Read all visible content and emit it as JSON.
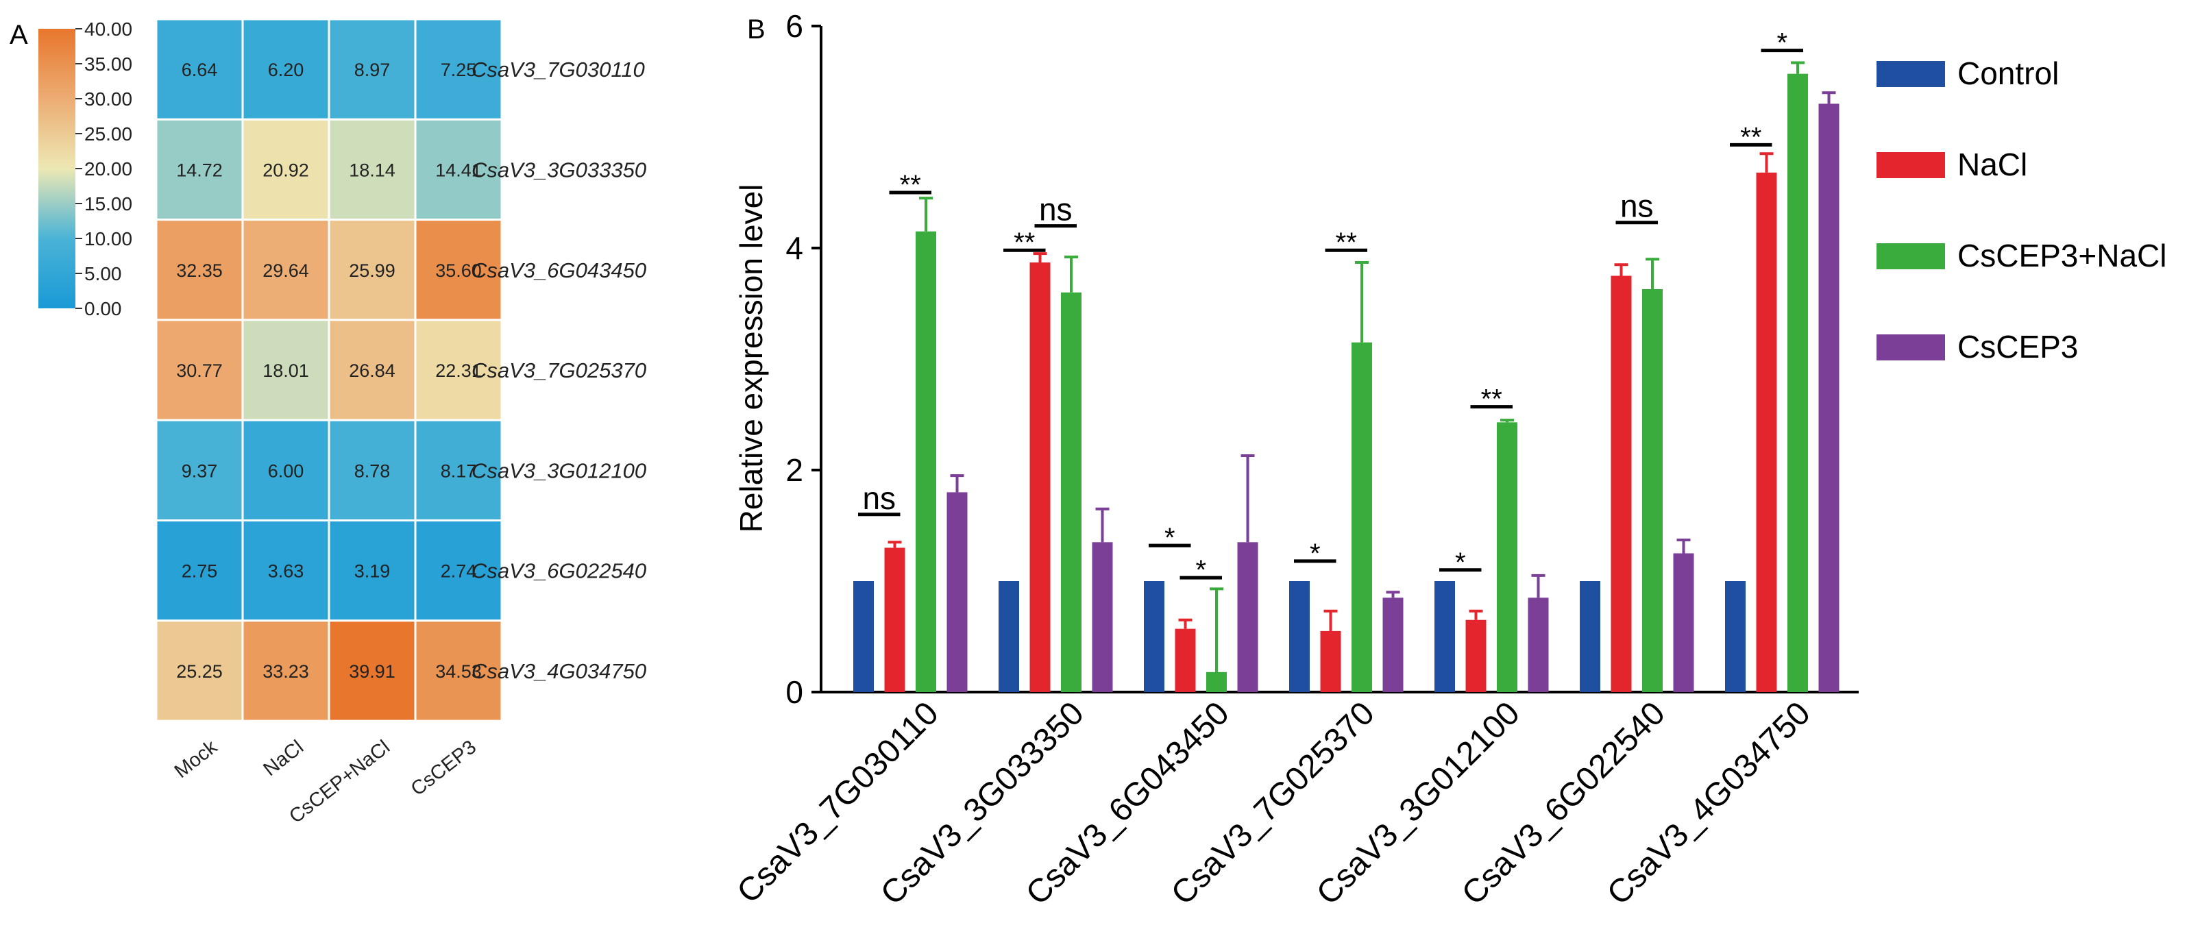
{
  "chart_data": [
    {
      "type": "heatmap",
      "panel_label": "A",
      "columns": [
        "Mock",
        "NaCl",
        "CsCEP+NaCl",
        "CsCEP3"
      ],
      "rows": [
        "CsaV3_7G030110",
        "CsaV3_3G033350",
        "CsaV3_6G043450",
        "CsaV3_7G025370",
        "CsaV3_3G012100",
        "CsaV3_6G022540",
        "CsaV3_4G034750"
      ],
      "values": [
        [
          6.64,
          6.2,
          8.97,
          7.25
        ],
        [
          14.72,
          20.92,
          18.14,
          14.41
        ],
        [
          32.35,
          29.64,
          25.99,
          35.6
        ],
        [
          30.77,
          18.01,
          26.84,
          22.31
        ],
        [
          9.37,
          6.0,
          8.78,
          8.17
        ],
        [
          2.75,
          3.63,
          3.19,
          2.74
        ],
        [
          25.25,
          33.23,
          39.91,
          34.53
        ]
      ],
      "value_labels": [
        [
          "6.64",
          "6.20",
          "8.97",
          "7.25"
        ],
        [
          "14.72",
          "20.92",
          "18.14",
          "14.41"
        ],
        [
          "32.35",
          "29.64",
          "25.99",
          "35.60"
        ],
        [
          "30.77",
          "18.01",
          "26.84",
          "22.31"
        ],
        [
          "9.37",
          "6.00",
          "8.78",
          "8.17"
        ],
        [
          "2.75",
          "3.63",
          "3.19",
          "2.74"
        ],
        [
          "25.25",
          "33.23",
          "39.91",
          "34.53"
        ]
      ],
      "color_range": [
        0,
        40
      ],
      "color_stops": [
        {
          "value": 0,
          "color": "#1a9ad6"
        },
        {
          "value": 10,
          "color": "#4ab3d6"
        },
        {
          "value": 20,
          "color": "#ede8b4"
        },
        {
          "value": 30,
          "color": "#ecac73"
        },
        {
          "value": 40,
          "color": "#e8762c"
        }
      ],
      "colorbar_ticks": [
        "40.00",
        "35.00",
        "30.00",
        "25.00",
        "20.00",
        "15.00",
        "10.00",
        "5.00",
        "0.00"
      ]
    },
    {
      "type": "bar",
      "panel_label": "B",
      "categories": [
        "CsaV3_7G030110",
        "CsaV3_3G033350",
        "CsaV3_6G043450",
        "CsaV3_7G025370",
        "CsaV3_3G012100",
        "CsaV3_6G022540",
        "CsaV3_4G034750"
      ],
      "series": [
        {
          "name": "Control",
          "color": "#1f4fa0",
          "values": [
            1.0,
            1.0,
            1.0,
            1.0,
            1.0,
            1.0,
            1.0
          ],
          "errors": [
            0,
            0,
            0,
            0,
            0,
            0,
            0
          ]
        },
        {
          "name": "NaCl",
          "color": "#e3262e",
          "values": [
            1.3,
            3.87,
            0.57,
            0.55,
            0.65,
            3.75,
            4.68
          ],
          "errors": [
            0.05,
            0.08,
            0.08,
            0.18,
            0.08,
            0.1,
            0.17
          ]
        },
        {
          "name": "CsCEP3+NaCl",
          "color": "#3aab3d",
          "values": [
            4.15,
            3.6,
            0.18,
            3.15,
            2.43,
            3.63,
            5.57
          ],
          "errors": [
            0.3,
            0.32,
            0.75,
            0.72,
            0.02,
            0.27,
            0.1
          ]
        },
        {
          "name": "CsCEP3",
          "color": "#7b3f97",
          "values": [
            1.8,
            1.35,
            1.35,
            0.85,
            0.85,
            1.25,
            5.3
          ],
          "errors": [
            0.15,
            0.3,
            0.78,
            0.05,
            0.2,
            0.12,
            0.1
          ]
        }
      ],
      "ylabel": "Relative expression level",
      "xlabel": "",
      "ylim": [
        0,
        6
      ],
      "yticks": [
        "0",
        "2",
        "4",
        "6"
      ],
      "annotations": [
        {
          "category": 0,
          "from": 0,
          "to": 1,
          "text": "ns",
          "y": 1.6
        },
        {
          "category": 0,
          "from": 1,
          "to": 2,
          "text": "**",
          "y": 4.5
        },
        {
          "category": 1,
          "from": 0,
          "to": 1,
          "text": "**",
          "y": 3.98
        },
        {
          "category": 1,
          "from": 1,
          "to": 2,
          "text": "ns",
          "y": 4.2
        },
        {
          "category": 2,
          "from": 0,
          "to": 1,
          "text": "*",
          "y": 1.32
        },
        {
          "category": 2,
          "from": 1,
          "to": 2,
          "text": "*",
          "y": 1.03
        },
        {
          "category": 3,
          "from": 0,
          "to": 1,
          "text": "*",
          "y": 1.18
        },
        {
          "category": 3,
          "from": 1,
          "to": 2,
          "text": "**",
          "y": 3.98
        },
        {
          "category": 4,
          "from": 0,
          "to": 1,
          "text": "*",
          "y": 1.1
        },
        {
          "category": 4,
          "from": 1,
          "to": 2,
          "text": "**",
          "y": 2.57
        },
        {
          "category": 5,
          "from": 1,
          "to": 2,
          "text": "ns",
          "y": 4.23
        },
        {
          "category": 6,
          "from": 0,
          "to": 1,
          "text": "**",
          "y": 4.93
        },
        {
          "category": 6,
          "from": 1,
          "to": 2,
          "text": "*",
          "y": 5.78
        }
      ],
      "legend_position": "right",
      "legend": [
        "Control",
        "NaCl",
        "CsCEP3+NaCl",
        "CsCEP3"
      ]
    }
  ]
}
